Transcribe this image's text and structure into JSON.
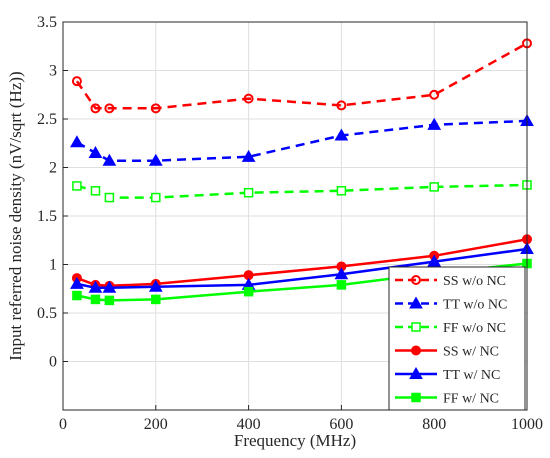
{
  "chart_data": {
    "type": "line",
    "xlabel": "Frequency (MHz)",
    "ylabel": "Input referred noise density (nV/sqrt (Hz))",
    "xlim": [
      0,
      1000
    ],
    "ylim": [
      -0.5,
      3.5
    ],
    "xticks": [
      "0",
      "200",
      "400",
      "600",
      "800",
      "1000"
    ],
    "yticks": [
      "0",
      "0.5",
      "1",
      "1.5",
      "2",
      "2.5",
      "3",
      "3.5"
    ],
    "grid": true,
    "legend_position": "bottom-right",
    "series": [
      {
        "name": "SS w/o NC",
        "color": "#ff0000",
        "dash": "dashed",
        "marker": "circle",
        "x": [
          30,
          70,
          100,
          200,
          400,
          600,
          800,
          1000
        ],
        "y": [
          2.89,
          2.61,
          2.61,
          2.61,
          2.71,
          2.64,
          2.75,
          3.28
        ]
      },
      {
        "name": "TT w/o NC",
        "color": "#0000ff",
        "dash": "dashed",
        "marker": "triangle",
        "x": [
          30,
          70,
          100,
          200,
          400,
          600,
          800,
          1000
        ],
        "y": [
          2.26,
          2.15,
          2.07,
          2.07,
          2.11,
          2.33,
          2.44,
          2.48
        ]
      },
      {
        "name": "FF w/o NC",
        "color": "#00ff00",
        "dash": "dashed",
        "marker": "square",
        "x": [
          30,
          70,
          100,
          200,
          400,
          600,
          800,
          1000
        ],
        "y": [
          1.81,
          1.76,
          1.69,
          1.69,
          1.74,
          1.76,
          1.8,
          1.82
        ]
      },
      {
        "name": "SS w/ NC",
        "color": "#ff0000",
        "dash": "solid",
        "marker": "circle",
        "x": [
          30,
          70,
          100,
          200,
          400,
          600,
          800,
          1000
        ],
        "y": [
          0.86,
          0.79,
          0.78,
          0.8,
          0.89,
          0.98,
          1.09,
          1.26
        ]
      },
      {
        "name": "TT w/ NC",
        "color": "#0000ff",
        "dash": "solid",
        "marker": "triangle",
        "x": [
          30,
          70,
          100,
          200,
          400,
          600,
          800,
          1000
        ],
        "y": [
          0.8,
          0.76,
          0.76,
          0.77,
          0.79,
          0.9,
          1.03,
          1.16
        ]
      },
      {
        "name": "FF w/ NC",
        "color": "#00ff00",
        "dash": "solid",
        "marker": "square",
        "x": [
          30,
          70,
          100,
          200,
          400,
          600,
          800,
          1000
        ],
        "y": [
          0.68,
          0.64,
          0.63,
          0.64,
          0.72,
          0.79,
          0.91,
          1.01
        ]
      }
    ]
  }
}
